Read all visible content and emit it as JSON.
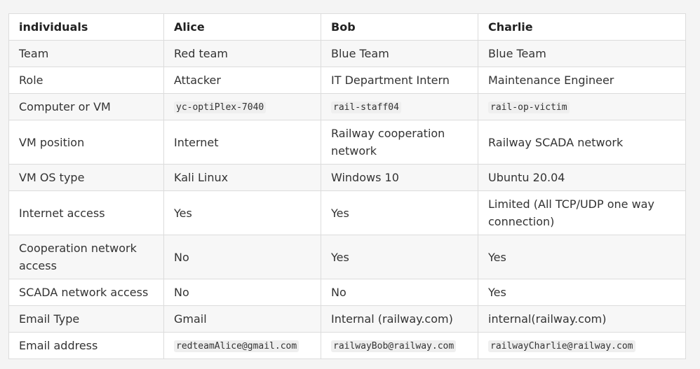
{
  "table": {
    "headers": [
      "individuals",
      "Alice",
      "Bob",
      "Charlie"
    ],
    "rows": [
      {
        "label": "Team",
        "alice": "Red team",
        "bob": "Blue Team",
        "charlie": "Blue Team"
      },
      {
        "label": "Role",
        "alice": "Attacker",
        "bob": "IT Department Intern",
        "charlie": "Maintenance Engineer"
      },
      {
        "label": "Computer or VM",
        "alice": "yc-optiPlex-7040",
        "bob": "rail-staff04",
        "charlie": "rail-op-victim"
      },
      {
        "label": "VM position",
        "alice": "Internet",
        "bob": "Railway cooperation network",
        "charlie": "Railway SCADA network"
      },
      {
        "label": "VM OS type",
        "alice": "Kali Linux",
        "bob": "Windows 10",
        "charlie": "Ubuntu 20.04"
      },
      {
        "label": "Internet access",
        "alice": "Yes",
        "bob": "Yes",
        "charlie": "Limited (All TCP/UDP one way connection)"
      },
      {
        "label": "Cooperation network access",
        "alice": "No",
        "bob": "Yes",
        "charlie": "Yes"
      },
      {
        "label": "SCADA network access",
        "alice": "No",
        "bob": "No",
        "charlie": "Yes"
      },
      {
        "label": "Email Type",
        "alice": "Gmail",
        "bob": "Internal (railway.com)",
        "charlie": "internal(railway.com)"
      },
      {
        "label": "Email address",
        "alice": "redteamAlice@gmail.com",
        "bob": "railwayBob@railway.com",
        "charlie": "railwayCharlie@railway.com"
      }
    ]
  }
}
